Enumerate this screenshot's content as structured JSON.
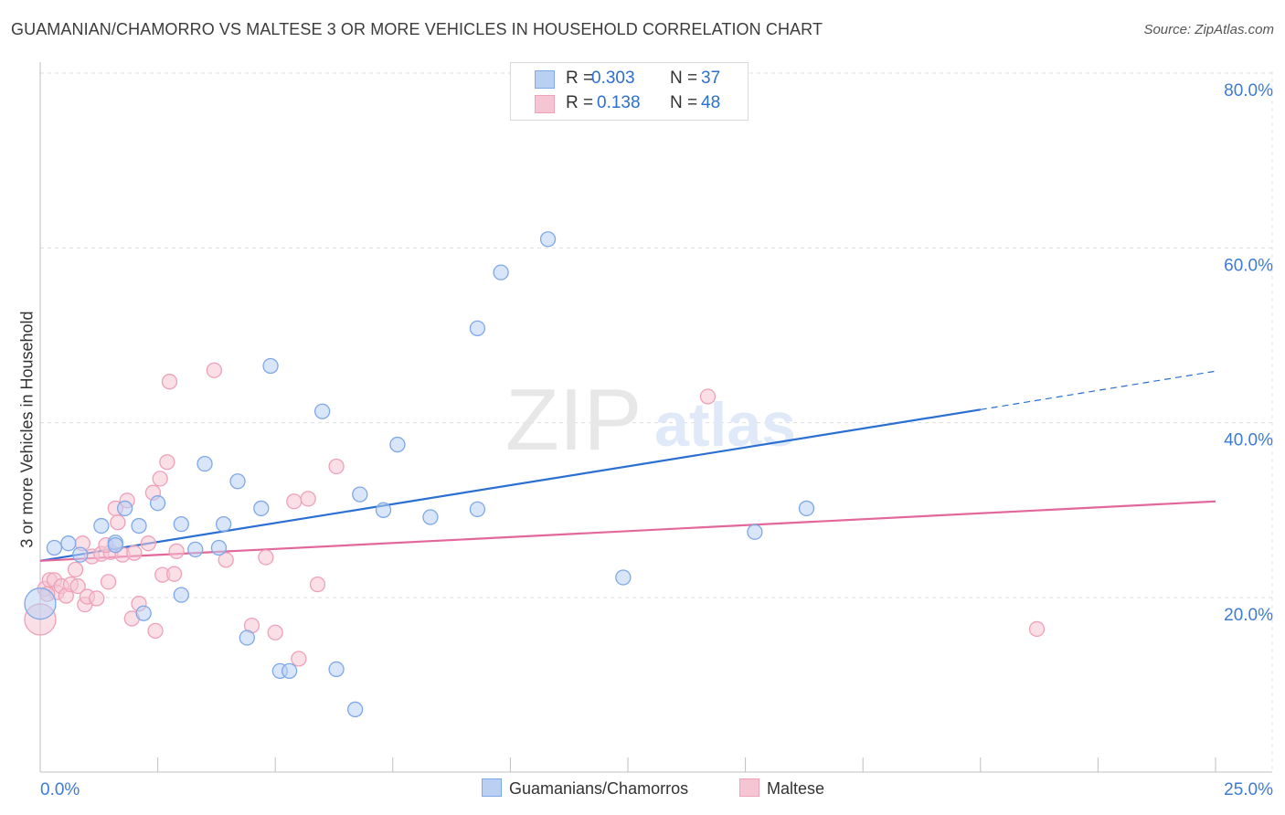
{
  "chart_data": {
    "type": "scatter",
    "title": "GUAMANIAN/CHAMORRO VS MALTESE 3 OR MORE VEHICLES IN HOUSEHOLD CORRELATION CHART",
    "source": "Source: ZipAtlas.com",
    "ylabel": "3 or more Vehicles in Household",
    "xlim": [
      0,
      25
    ],
    "ylim": [
      0,
      82
    ],
    "x_tick_labels": [
      "0.0%",
      "25.0%"
    ],
    "y_ticks": [
      20,
      40,
      60,
      80
    ],
    "y_tick_labels": [
      "20.0%",
      "40.0%",
      "60.0%",
      "80.0%"
    ],
    "grid": true,
    "watermark": {
      "zip": "ZIP",
      "atlas": "atlas"
    },
    "legend": {
      "placement": "top-center",
      "rows": [
        {
          "r_label": "R =",
          "r_value": "0.303",
          "n_label": "N =",
          "n_value": "37"
        },
        {
          "r_label": "R =",
          "r_value": "0.138",
          "n_label": "N =",
          "n_value": "48"
        }
      ]
    },
    "series": [
      {
        "name": "Guamanians/Chamorros",
        "color": "#7ea8e8",
        "fill": "#b9d0f3",
        "line_color": "#2a6fd1",
        "trend": {
          "x0": 0,
          "y0": 24.2,
          "x1": 20,
          "y1": 41.5,
          "x_ext": 25,
          "y_ext": 45.9
        },
        "points": [
          [
            0.3,
            25.7
          ],
          [
            0.6,
            26.2
          ],
          [
            0.85,
            24.9
          ],
          [
            1.3,
            28.2
          ],
          [
            1.6,
            26.3
          ],
          [
            1.8,
            30.2
          ],
          [
            2.1,
            28.2
          ],
          [
            2.2,
            18.2
          ],
          [
            2.5,
            30.8
          ],
          [
            3.0,
            28.4
          ],
          [
            3.0,
            20.3
          ],
          [
            3.3,
            25.5
          ],
          [
            3.5,
            35.3
          ],
          [
            3.9,
            28.4
          ],
          [
            3.8,
            25.7
          ],
          [
            4.2,
            33.3
          ],
          [
            4.4,
            15.4
          ],
          [
            4.7,
            30.2
          ],
          [
            4.9,
            46.5
          ],
          [
            5.1,
            11.6
          ],
          [
            5.3,
            11.6
          ],
          [
            6.0,
            41.3
          ],
          [
            6.3,
            11.8
          ],
          [
            6.7,
            7.2
          ],
          [
            6.8,
            31.8
          ],
          [
            7.3,
            30.0
          ],
          [
            7.6,
            37.5
          ],
          [
            8.3,
            29.2
          ],
          [
            9.3,
            30.1
          ],
          [
            9.3,
            50.8
          ],
          [
            9.8,
            57.2
          ],
          [
            10.8,
            61.0
          ],
          [
            12.4,
            22.3
          ],
          [
            15.2,
            27.5
          ],
          [
            16.3,
            30.2
          ],
          [
            0.0,
            19.3
          ],
          [
            1.6,
            26.0
          ]
        ]
      },
      {
        "name": "Maltese",
        "color": "#eea1b8",
        "fill": "#f6c5d4",
        "line_color": "#e2679a",
        "trend": {
          "x0": 0,
          "y0": 24.2,
          "x1": 25,
          "y1": 31.0
        },
        "points": [
          [
            0.1,
            21.0
          ],
          [
            0.2,
            22.0
          ],
          [
            0.3,
            22.0
          ],
          [
            0.35,
            20.6
          ],
          [
            0.45,
            21.3
          ],
          [
            0.55,
            20.2
          ],
          [
            0.65,
            21.5
          ],
          [
            0.75,
            23.2
          ],
          [
            0.8,
            21.3
          ],
          [
            0.9,
            26.2
          ],
          [
            0.95,
            19.2
          ],
          [
            1.0,
            20.1
          ],
          [
            1.1,
            24.7
          ],
          [
            1.2,
            19.9
          ],
          [
            1.3,
            25.0
          ],
          [
            1.45,
            21.8
          ],
          [
            1.5,
            25.2
          ],
          [
            1.6,
            30.2
          ],
          [
            1.65,
            28.6
          ],
          [
            1.75,
            24.9
          ],
          [
            1.85,
            31.1
          ],
          [
            1.95,
            17.6
          ],
          [
            2.0,
            25.1
          ],
          [
            2.1,
            19.3
          ],
          [
            2.3,
            26.2
          ],
          [
            2.4,
            32.0
          ],
          [
            2.45,
            16.2
          ],
          [
            2.55,
            33.6
          ],
          [
            2.6,
            22.6
          ],
          [
            2.7,
            35.5
          ],
          [
            2.75,
            44.7
          ],
          [
            2.85,
            22.7
          ],
          [
            2.9,
            25.3
          ],
          [
            3.7,
            46.0
          ],
          [
            3.95,
            24.3
          ],
          [
            4.5,
            16.8
          ],
          [
            4.8,
            24.6
          ],
          [
            5.0,
            16.0
          ],
          [
            5.4,
            31.0
          ],
          [
            5.5,
            13.0
          ],
          [
            5.7,
            31.3
          ],
          [
            5.9,
            21.5
          ],
          [
            6.3,
            35.0
          ],
          [
            14.2,
            43.0
          ],
          [
            21.2,
            16.4
          ],
          [
            0.0,
            17.5
          ],
          [
            0.15,
            20.4
          ],
          [
            1.4,
            26.0
          ]
        ]
      }
    ]
  }
}
